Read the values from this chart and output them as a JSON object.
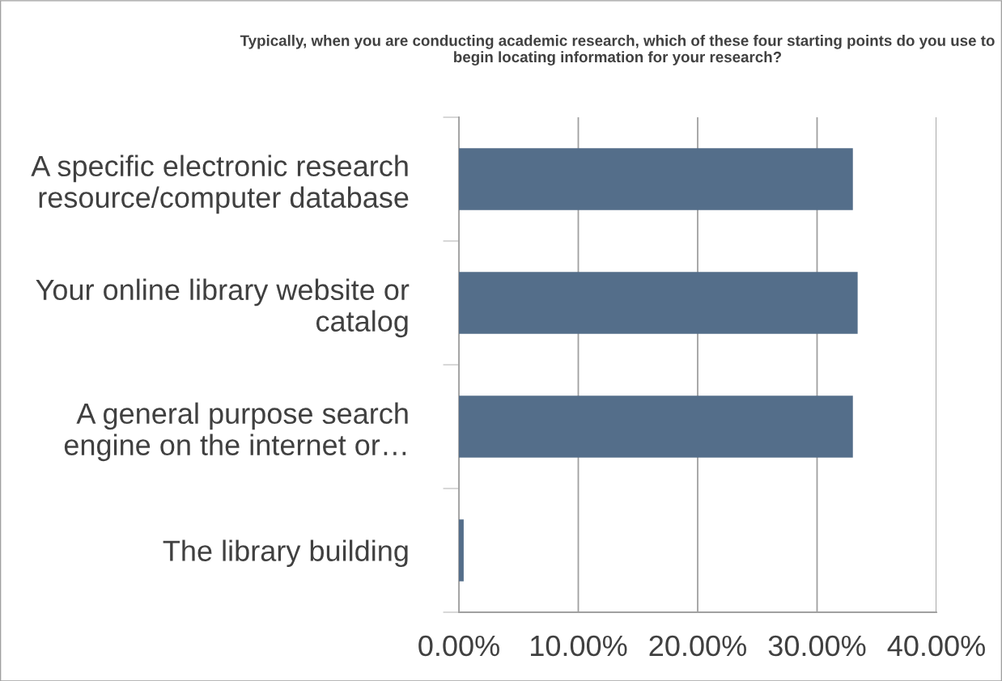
{
  "chart_data": {
    "type": "bar",
    "orientation": "horizontal",
    "title": "Typically, when you are conducting academic research, which of these four starting points do you use to begin locating information for your research?",
    "categories": [
      "A specific electronic research resource/computer database",
      "Your online library website or catalog",
      "A general purpose search engine on the internet or…",
      "The library building"
    ],
    "values": [
      33.0,
      33.4,
      33.0,
      0.4
    ],
    "color": "#546e8a",
    "xlim": [
      0,
      40
    ],
    "xticks": [
      {
        "value": 0,
        "label": "0.00%"
      },
      {
        "value": 10,
        "label": "10.00%"
      },
      {
        "value": 20,
        "label": "20.00%"
      },
      {
        "value": 30,
        "label": "30.00%"
      },
      {
        "value": 40,
        "label": "40.00%"
      }
    ],
    "grid": "x"
  }
}
